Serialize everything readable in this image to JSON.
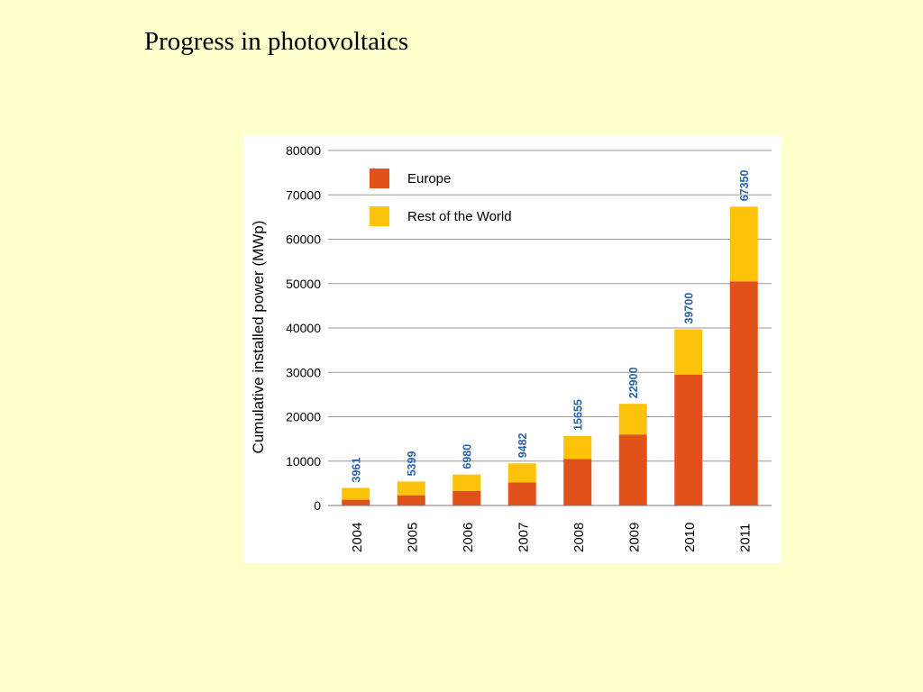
{
  "slide": {
    "title": "Progress in photovoltaics"
  },
  "colors": {
    "europe": "#e0521a",
    "rest_of_world": "#fdc30a",
    "total_label": "#2a63a8",
    "grid": "#9a9a9a"
  },
  "chart_data": {
    "type": "bar",
    "stacked": true,
    "title": "",
    "xlabel": "",
    "ylabel": "Cumulative installed power (MWp)",
    "ylim": [
      0,
      80000
    ],
    "yticks": [
      0,
      10000,
      20000,
      30000,
      40000,
      50000,
      60000,
      70000,
      80000
    ],
    "grid": true,
    "legend_position": "top-left",
    "categories": [
      "2004",
      "2005",
      "2006",
      "2007",
      "2008",
      "2009",
      "2010",
      "2011"
    ],
    "series": [
      {
        "name": "Europe",
        "values": [
          1300,
          2300,
          3300,
          5200,
          10500,
          16000,
          29500,
          50500
        ]
      },
      {
        "name": "Rest of the World",
        "values": [
          2661,
          3099,
          3680,
          4282,
          5155,
          6900,
          10200,
          16850
        ]
      }
    ],
    "totals": [
      "3961",
      "5399",
      "6980",
      "9482",
      "15655",
      "22900",
      "39700",
      "67350"
    ]
  }
}
